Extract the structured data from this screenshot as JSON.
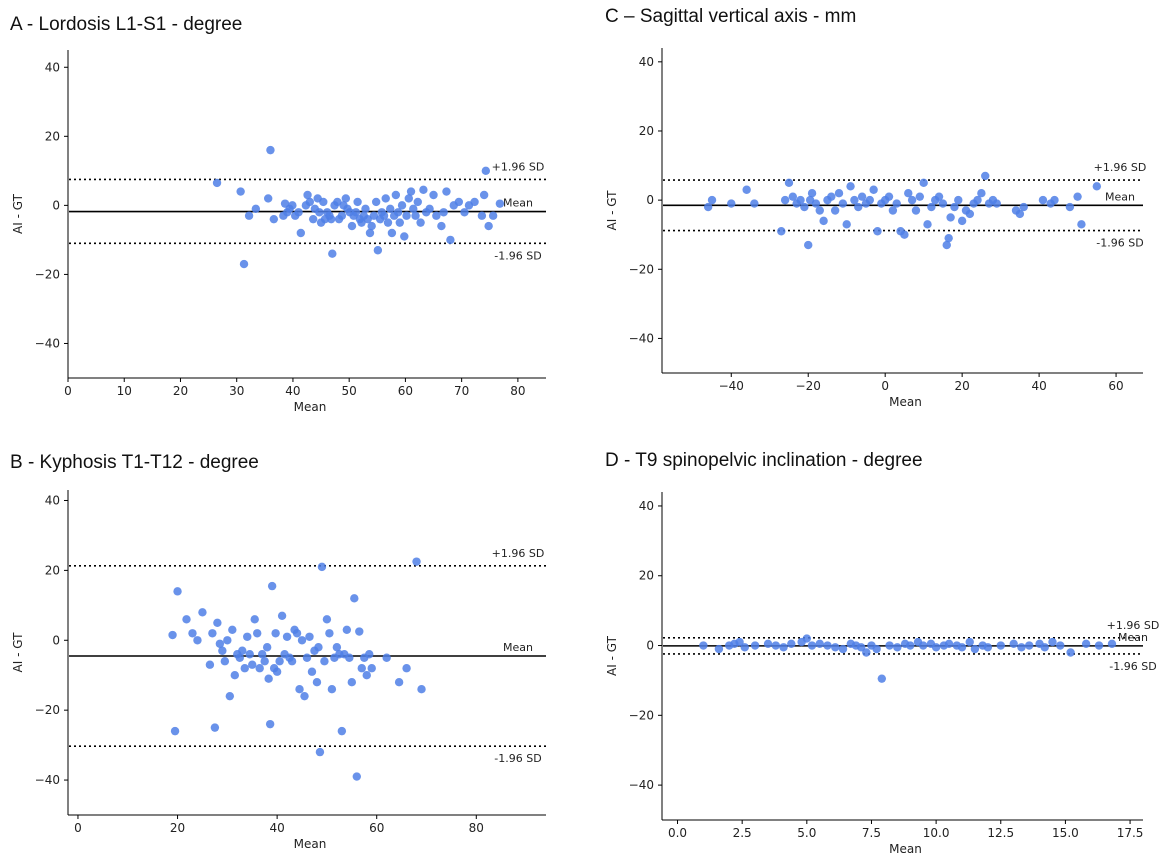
{
  "chart_data": [
    {
      "type": "scatter",
      "title": "A - Lordosis L1-S1 - degree",
      "xlabel": "Mean",
      "ylabel": "AI - GT",
      "xlim": [
        0,
        85
      ],
      "ylim": [
        -50,
        45
      ],
      "xticks": [
        0,
        10,
        20,
        30,
        40,
        50,
        60,
        70,
        80
      ],
      "xtick_labels": [
        "0",
        "10",
        "20",
        "30",
        "40",
        "50",
        "60",
        "70",
        "80"
      ],
      "yticks": [
        -40,
        -20,
        0,
        20,
        40
      ],
      "ytick_labels": [
        "−40",
        "−20",
        "0",
        "20",
        "40"
      ],
      "mean": -1.8,
      "upper": 7.5,
      "lower": -11.0,
      "upper_label": "+1.96 SD",
      "mean_label": "Mean",
      "lower_label": "-1.96 SD",
      "color": "#4f7fe6",
      "series": [
        {
          "x": [
            26.5,
            30.7,
            31.3,
            32.2,
            33.4,
            35.6,
            36.0,
            36.6,
            38.3,
            38.6,
            39.0,
            39.4,
            39.9,
            40.4,
            41.0,
            41.4,
            42.3,
            42.6,
            43.0,
            43.6,
            43.9,
            44.4,
            44.7,
            45.0,
            45.4,
            45.7,
            46.1,
            46.5,
            46.8,
            47.0,
            47.4,
            47.9,
            48.2,
            48.7,
            49.0,
            49.4,
            49.7,
            50.1,
            50.5,
            50.8,
            51.2,
            51.5,
            51.9,
            52.2,
            52.6,
            52.9,
            53.3,
            53.7,
            54.0,
            54.4,
            54.8,
            55.1,
            55.5,
            55.8,
            56.2,
            56.5,
            56.9,
            57.3,
            57.6,
            58.0,
            58.3,
            58.7,
            59.0,
            59.4,
            59.8,
            60.2,
            60.6,
            61.0,
            61.4,
            61.8,
            62.2,
            62.7,
            63.2,
            63.7,
            64.3,
            65.0,
            65.5,
            66.4,
            66.8,
            67.3,
            68.0,
            68.6,
            69.5,
            70.5,
            71.3,
            72.3,
            73.6,
            74.0,
            74.3,
            74.8,
            75.6,
            76.8
          ],
          "y": [
            6.5,
            4.0,
            -17.0,
            -3.0,
            -1.0,
            2.0,
            16.0,
            -4.0,
            -3.0,
            0.5,
            -2.0,
            -1.0,
            0.0,
            -3.0,
            -2.0,
            -8.0,
            0.0,
            3.0,
            1.0,
            -4.0,
            -1.0,
            2.0,
            -2.0,
            -5.0,
            1.0,
            -4.0,
            -2.0,
            -3.0,
            -4.0,
            -14.0,
            0.0,
            1.0,
            -4.0,
            -3.0,
            0.0,
            2.0,
            -1.0,
            -2.0,
            -6.0,
            -3.0,
            -2.0,
            1.0,
            -4.0,
            -5.0,
            -3.0,
            -1.0,
            -4.0,
            -8.0,
            -6.0,
            -3.0,
            1.0,
            -13.0,
            -4.0,
            -2.0,
            -3.0,
            2.0,
            -5.0,
            -1.0,
            -8.0,
            -3.0,
            3.0,
            -2.0,
            -5.0,
            0.0,
            -9.0,
            -3.0,
            2.0,
            4.0,
            -1.0,
            -3.0,
            1.0,
            -5.0,
            4.5,
            -2.0,
            -1.0,
            3.0,
            -3.0,
            -6.0,
            -2.0,
            4.0,
            -10.0,
            0.0,
            1.0,
            -2.0,
            0.0,
            1.0,
            -3.0,
            3.0,
            10.0,
            -6.0,
            -3.0,
            0.5
          ]
        }
      ]
    },
    {
      "type": "scatter",
      "title": "B - Kyphosis T1-T12 - degree",
      "xlabel": "Mean",
      "ylabel": "AI - GT",
      "xlim": [
        -2,
        94
      ],
      "ylim": [
        -50,
        43
      ],
      "xticks": [
        0,
        20,
        40,
        60,
        80
      ],
      "xtick_labels": [
        "0",
        "20",
        "40",
        "60",
        "80"
      ],
      "yticks": [
        -40,
        -20,
        0,
        20,
        40
      ],
      "ytick_labels": [
        "−40",
        "−20",
        "0",
        "20",
        "40"
      ],
      "mean": -4.5,
      "upper": 21.3,
      "lower": -30.3,
      "upper_label": "+1.96 SD",
      "mean_label": "Mean",
      "lower_label": "-1.96 SD",
      "color": "#4f7fe6",
      "series": [
        {
          "x": [
            19.0,
            19.5,
            20.0,
            21.8,
            23.0,
            24.0,
            25.0,
            26.5,
            27.0,
            27.5,
            28.0,
            28.5,
            29.0,
            29.5,
            30.0,
            30.5,
            31.0,
            31.5,
            32.0,
            32.5,
            33.0,
            33.5,
            34.0,
            34.5,
            35.0,
            35.5,
            36.0,
            36.5,
            37.0,
            37.5,
            38.0,
            38.3,
            38.6,
            39.0,
            39.4,
            39.7,
            40.0,
            40.5,
            41.0,
            41.5,
            42.0,
            42.5,
            43.0,
            43.5,
            44.0,
            44.5,
            45.0,
            45.5,
            46.0,
            46.5,
            47.0,
            47.5,
            48.0,
            48.3,
            48.6,
            49.0,
            49.5,
            50.0,
            50.5,
            51.0,
            51.5,
            52.0,
            52.5,
            53.0,
            53.5,
            54.0,
            54.5,
            55.0,
            55.5,
            56.0,
            56.5,
            57.0,
            57.5,
            58.0,
            58.5,
            59.0,
            62.0,
            64.5,
            66.0,
            68.0,
            69.0
          ],
          "y": [
            1.5,
            -26.0,
            14.0,
            6.0,
            2.0,
            0.0,
            8.0,
            -7.0,
            2.0,
            -25.0,
            5.0,
            -1.0,
            -3.0,
            -6.0,
            0.0,
            -16.0,
            3.0,
            -10.0,
            -4.0,
            -5.0,
            -3.0,
            -8.0,
            1.0,
            -4.0,
            -7.0,
            6.0,
            2.0,
            -8.0,
            -4.0,
            -6.0,
            -2.0,
            -11.0,
            -24.0,
            15.5,
            -8.0,
            2.0,
            -9.0,
            -6.0,
            7.0,
            -4.0,
            1.0,
            -5.0,
            -6.0,
            3.0,
            2.0,
            -14.0,
            0.0,
            -16.0,
            -5.0,
            1.0,
            -9.0,
            -3.0,
            -12.0,
            -2.0,
            -32.0,
            21.0,
            -6.0,
            6.0,
            2.0,
            -14.0,
            -5.0,
            -2.0,
            -4.0,
            -26.0,
            -4.0,
            3.0,
            -5.0,
            -12.0,
            12.0,
            -39.0,
            2.5,
            -8.0,
            -5.0,
            -10.0,
            -4.0,
            -8.0,
            -5.0,
            -12.0,
            -8.0,
            22.5,
            -14.0
          ]
        }
      ]
    },
    {
      "type": "scatter",
      "title": "C – Sagittal vertical axis - mm",
      "xlabel": "Mean",
      "ylabel": "AI - GT",
      "xlim": [
        -58,
        67
      ],
      "ylim": [
        -50,
        44
      ],
      "xticks": [
        -40,
        -20,
        0,
        20,
        40,
        60
      ],
      "xtick_labels": [
        "−40",
        "−20",
        "0",
        "20",
        "40",
        "60"
      ],
      "yticks": [
        -40,
        -20,
        0,
        20,
        40
      ],
      "ytick_labels": [
        "−40",
        "−20",
        "0",
        "20",
        "40"
      ],
      "mean": -1.5,
      "upper": 5.8,
      "lower": -8.8,
      "upper_label": "+1.96 SD",
      "mean_label": "Mean",
      "lower_label": "-1.96 SD",
      "color": "#4f7fe6",
      "series": [
        {
          "x": [
            -46.0,
            -45.0,
            -40.0,
            -36.0,
            -34.0,
            -27.0,
            -26.0,
            -25.0,
            -24.0,
            -23.0,
            -22.0,
            -21.0,
            -20.0,
            -19.5,
            -19.0,
            -18.0,
            -17.0,
            -16.0,
            -15.0,
            -14.0,
            -13.0,
            -12.0,
            -11.0,
            -10.0,
            -9.0,
            -8.0,
            -7.0,
            -6.0,
            -5.0,
            -4.0,
            -3.0,
            -2.0,
            -1.0,
            0.0,
            1.0,
            2.0,
            3.0,
            4.0,
            5.0,
            6.0,
            7.0,
            8.0,
            9.0,
            10.0,
            11.0,
            12.0,
            13.0,
            14.0,
            15.0,
            16.0,
            16.5,
            17.0,
            18.0,
            19.0,
            20.0,
            21.0,
            22.0,
            23.0,
            24.0,
            25.0,
            26.0,
            27.0,
            28.0,
            29.0,
            34.0,
            35.0,
            36.0,
            41.0,
            43.0,
            44.0,
            48.0,
            50.0,
            51.0,
            55.0
          ],
          "y": [
            -2.0,
            0.0,
            -1.0,
            3.0,
            -1.0,
            -9.0,
            0.0,
            5.0,
            1.0,
            -1.0,
            0.0,
            -2.0,
            -13.0,
            0.0,
            2.0,
            -1.0,
            -3.0,
            -6.0,
            0.0,
            1.0,
            -3.0,
            2.0,
            -1.0,
            -7.0,
            4.0,
            0.0,
            -2.0,
            1.0,
            -1.0,
            0.0,
            3.0,
            -9.0,
            -1.0,
            0.0,
            1.0,
            -3.0,
            -1.0,
            -9.0,
            -10.0,
            2.0,
            0.0,
            -3.0,
            1.0,
            5.0,
            -7.0,
            -2.0,
            0.0,
            1.0,
            -1.0,
            -13.0,
            -11.0,
            -5.0,
            -2.0,
            0.0,
            -6.0,
            -3.0,
            -4.0,
            -1.0,
            0.0,
            2.0,
            7.0,
            -1.0,
            0.0,
            -1.0,
            -3.0,
            -4.0,
            -2.0,
            0.0,
            -1.0,
            0.0,
            -2.0,
            1.0,
            -7.0,
            4.0
          ]
        }
      ]
    },
    {
      "type": "scatter",
      "title": "D - T9 spinopelvic inclination - degree",
      "xlabel": "Mean",
      "ylabel": "AI - GT",
      "xlim": [
        -0.6,
        18.0
      ],
      "ylim": [
        -50,
        44
      ],
      "xticks": [
        0,
        2.5,
        5,
        7.5,
        10,
        12.5,
        15,
        17.5
      ],
      "xtick_labels": [
        "0.0",
        "2.5",
        "5.0",
        "7.5",
        "10.0",
        "12.5",
        "15.0",
        "17.5"
      ],
      "yticks": [
        -40,
        -20,
        0,
        20,
        40
      ],
      "ytick_labels": [
        "−40",
        "−20",
        "0",
        "20",
        "40"
      ],
      "mean": -0.1,
      "upper": 2.2,
      "lower": -2.4,
      "upper_label": "+1.96 SD",
      "mean_label": "Mean",
      "lower_label": "-1.96 SD",
      "color": "#4f7fe6",
      "series": [
        {
          "x": [
            1.0,
            1.6,
            2.0,
            2.2,
            2.4,
            2.6,
            3.0,
            3.5,
            3.8,
            4.1,
            4.4,
            4.8,
            5.0,
            5.2,
            5.5,
            5.8,
            6.1,
            6.4,
            6.7,
            6.9,
            7.1,
            7.3,
            7.5,
            7.7,
            7.9,
            8.2,
            8.5,
            8.8,
            9.0,
            9.3,
            9.5,
            9.8,
            10.0,
            10.3,
            10.5,
            10.8,
            11.0,
            11.3,
            11.5,
            11.8,
            12.0,
            12.5,
            13.0,
            13.3,
            13.6,
            14.0,
            14.2,
            14.5,
            14.8,
            15.2,
            15.8,
            16.3,
            16.8
          ],
          "y": [
            0.0,
            -1.0,
            0.0,
            0.5,
            1.0,
            -0.5,
            0.0,
            0.5,
            0.0,
            -0.5,
            0.5,
            1.0,
            2.0,
            0.0,
            0.5,
            0.0,
            -0.5,
            -1.0,
            0.5,
            0.0,
            -0.5,
            -2.0,
            0.0,
            -1.0,
            -9.5,
            0.0,
            -0.5,
            0.5,
            0.0,
            1.0,
            0.0,
            0.5,
            -0.5,
            0.0,
            0.5,
            0.0,
            -0.5,
            1.0,
            -1.0,
            0.0,
            -0.5,
            0.0,
            0.5,
            -0.5,
            0.0,
            0.5,
            -0.5,
            1.0,
            0.0,
            -2.0,
            0.5,
            0.0,
            0.5
          ]
        }
      ]
    }
  ]
}
